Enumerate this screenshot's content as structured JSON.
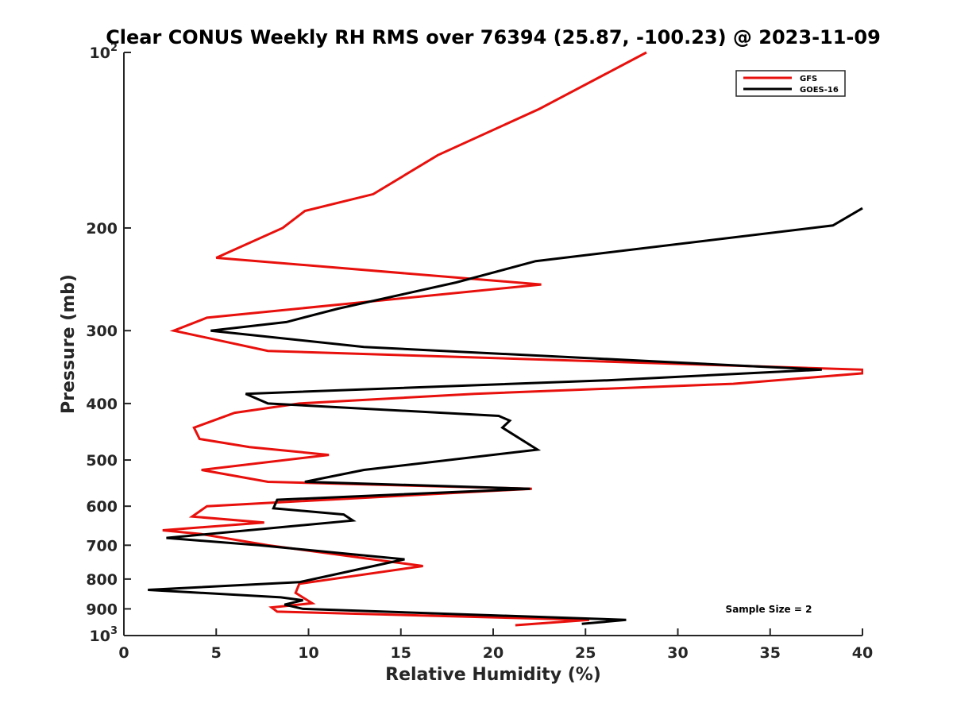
{
  "chart_data": {
    "type": "line",
    "title": "Clear CONUS Weekly RH RMS over 76394 (25.87, -100.23) @ 2023-11-09",
    "xlabel": "Relative Humidity (%)",
    "ylabel": "Pressure (mb)",
    "xlim": [
      0,
      40
    ],
    "ylim": [
      100,
      1000
    ],
    "y_scale": "log",
    "y_reversed": true,
    "x_ticks": [
      {
        "value": 0,
        "label": "0"
      },
      {
        "value": 5,
        "label": "5"
      },
      {
        "value": 10,
        "label": "10"
      },
      {
        "value": 15,
        "label": "15"
      },
      {
        "value": 20,
        "label": "20"
      },
      {
        "value": 25,
        "label": "25"
      },
      {
        "value": 30,
        "label": "30"
      },
      {
        "value": 35,
        "label": "35"
      },
      {
        "value": 40,
        "label": "40"
      }
    ],
    "y_ticks": [
      {
        "value": 100,
        "label": "10",
        "sup": "2"
      },
      {
        "value": 200,
        "label": "200",
        "sup": ""
      },
      {
        "value": 300,
        "label": "300",
        "sup": ""
      },
      {
        "value": 400,
        "label": "400",
        "sup": ""
      },
      {
        "value": 500,
        "label": "500",
        "sup": ""
      },
      {
        "value": 600,
        "label": "600",
        "sup": ""
      },
      {
        "value": 700,
        "label": "700",
        "sup": ""
      },
      {
        "value": 800,
        "label": "800",
        "sup": ""
      },
      {
        "value": 900,
        "label": "900",
        "sup": ""
      },
      {
        "value": 1000,
        "label": "10",
        "sup": "3"
      }
    ],
    "legend_position": "top-right",
    "grid": false,
    "annotation": "Sample Size = 2",
    "series": [
      {
        "name": "GFS",
        "color": "#e8100c",
        "points": [
          [
            28.3,
            100
          ],
          [
            22.5,
            125
          ],
          [
            17,
            150
          ],
          [
            13.5,
            175
          ],
          [
            9.8,
            187
          ],
          [
            8.6,
            200
          ],
          [
            5,
            225
          ],
          [
            22.6,
            250
          ],
          [
            4.5,
            285
          ],
          [
            2.7,
            300
          ],
          [
            7.8,
            325
          ],
          [
            40,
            350
          ],
          [
            40,
            355
          ],
          [
            33,
            370
          ],
          [
            19,
            385
          ],
          [
            9.5,
            400
          ],
          [
            6,
            415
          ],
          [
            3.8,
            440
          ],
          [
            4.1,
            460
          ],
          [
            6.8,
            475
          ],
          [
            11.1,
            490
          ],
          [
            4.2,
            520
          ],
          [
            7.8,
            545
          ],
          [
            22.1,
            560
          ],
          [
            4.5,
            600
          ],
          [
            3.7,
            625
          ],
          [
            7.6,
            640
          ],
          [
            2.1,
            660
          ],
          [
            4.2,
            670
          ],
          [
            7.8,
            700
          ],
          [
            16.2,
            760
          ],
          [
            9.5,
            815
          ],
          [
            9.3,
            845
          ],
          [
            10.2,
            880
          ],
          [
            8.0,
            895
          ],
          [
            8.3,
            910
          ],
          [
            25.2,
            940
          ],
          [
            21.2,
            960
          ]
        ]
      },
      {
        "name": "GOES-16",
        "color": "#000000",
        "points": [
          [
            40,
            185
          ],
          [
            38.4,
            198
          ],
          [
            22.3,
            228
          ],
          [
            18,
            248
          ],
          [
            11.6,
            275
          ],
          [
            8.8,
            290
          ],
          [
            4.7,
            300
          ],
          [
            13,
            320
          ],
          [
            37.8,
            350
          ],
          [
            26.2,
            365
          ],
          [
            6.6,
            385
          ],
          [
            7.8,
            400
          ],
          [
            20.3,
            420
          ],
          [
            20.9,
            428
          ],
          [
            20.5,
            440
          ],
          [
            22.4,
            480
          ],
          [
            13,
            520
          ],
          [
            9.8,
            545
          ],
          [
            22,
            560
          ],
          [
            8.3,
            585
          ],
          [
            8.1,
            605
          ],
          [
            11.9,
            620
          ],
          [
            12.4,
            635
          ],
          [
            2.3,
            680
          ],
          [
            7.3,
            700
          ],
          [
            15.2,
            740
          ],
          [
            9.5,
            810
          ],
          [
            1.3,
            835
          ],
          [
            8.5,
            860
          ],
          [
            9.7,
            870
          ],
          [
            8.7,
            885
          ],
          [
            9.7,
            900
          ],
          [
            27.2,
            940
          ],
          [
            24.8,
            955
          ]
        ]
      }
    ]
  }
}
